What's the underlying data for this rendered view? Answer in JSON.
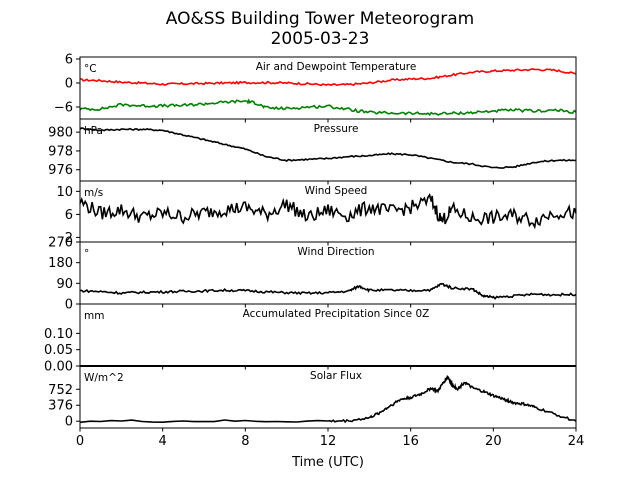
{
  "figure": {
    "title_line1": "AO&SS Building Tower Meteorogram",
    "title_line2": "2005-03-23",
    "xlabel": "Time (UTC)",
    "xticks": [
      0,
      4,
      8,
      12,
      16,
      20,
      24
    ],
    "xlim": [
      0,
      24
    ]
  },
  "chart_data": [
    {
      "type": "line",
      "title": "Air and Dewpoint Temperature",
      "unit": "°C",
      "ylim": [
        -9,
        6.5
      ],
      "yticks": [
        6,
        0,
        -6
      ],
      "ytick_labels": [
        "6",
        "0",
        "−6"
      ],
      "series": [
        {
          "color": "#ff0000",
          "x": [
            0,
            1,
            2,
            3,
            4,
            5,
            6,
            7,
            8,
            9,
            10,
            11,
            12,
            13,
            14,
            15,
            16,
            17,
            18,
            19,
            20,
            21,
            22,
            23,
            24
          ],
          "y": [
            0.8,
            0.6,
            0.2,
            0,
            -0.3,
            -0.2,
            -0.1,
            0,
            0.1,
            0.1,
            0,
            -0.2,
            -0.5,
            -0.4,
            0,
            0.7,
            1,
            1.2,
            2,
            2.7,
            3,
            3.2,
            3.4,
            3.2,
            2.3
          ]
        },
        {
          "color": "#008000",
          "x": [
            0,
            1,
            2,
            3,
            4,
            5,
            6,
            7,
            8,
            8.5,
            9,
            10,
            11,
            12,
            13,
            14,
            15,
            16,
            17,
            18,
            19,
            20,
            21,
            22,
            23,
            24
          ],
          "y": [
            -6.5,
            -6.5,
            -5.4,
            -5.7,
            -5.7,
            -5.6,
            -5.2,
            -4.8,
            -4.5,
            -5,
            -6.2,
            -6.4,
            -6,
            -5.8,
            -6.6,
            -7.4,
            -7.5,
            -7.6,
            -7.7,
            -7.6,
            -7.4,
            -7,
            -6.8,
            -7,
            -6.8,
            -7.3
          ]
        }
      ]
    },
    {
      "type": "line",
      "title": "Pressure",
      "unit": "hPa",
      "ylim": [
        974.8,
        981.4
      ],
      "yticks": [
        980,
        978,
        976
      ],
      "ytick_labels": [
        "980",
        "978",
        "976"
      ],
      "series": [
        {
          "color": "#000000",
          "x": [
            0,
            1,
            2,
            3,
            4,
            5,
            6,
            7,
            8,
            9,
            10,
            11,
            12,
            13,
            14,
            15,
            16,
            17,
            18,
            19,
            20,
            21,
            22,
            23,
            24
          ],
          "y": [
            980.4,
            980.2,
            980.3,
            980.3,
            980.2,
            979.7,
            979.2,
            978.7,
            978.2,
            977.4,
            977,
            977.1,
            977.2,
            977.4,
            977.5,
            977.7,
            977.6,
            977.2,
            976.8,
            976.6,
            976.2,
            976.3,
            976.8,
            977,
            977
          ]
        }
      ]
    },
    {
      "type": "line",
      "title": "Wind Speed",
      "unit": "m/s",
      "ylim": [
        1.2,
        11.8
      ],
      "yticks": [
        10,
        6,
        2
      ],
      "ytick_labels": [
        "10",
        "6",
        "2"
      ],
      "series": [
        {
          "color": "#000000",
          "x": [
            0,
            1,
            2,
            3,
            4,
            5,
            6,
            7,
            8,
            9,
            10,
            11,
            12,
            13,
            14,
            15,
            16,
            17,
            17.5,
            18,
            19,
            20,
            21,
            22,
            23,
            24
          ],
          "y": [
            8.2,
            6.2,
            6.8,
            5.5,
            6.2,
            5.6,
            6.3,
            6.9,
            7.2,
            6,
            7.8,
            5.4,
            6.7,
            5.8,
            7.3,
            6.5,
            7.2,
            8.5,
            4.8,
            6.8,
            5.3,
            5.4,
            5.8,
            4.9,
            6.4,
            6.2
          ]
        }
      ]
    },
    {
      "type": "line",
      "title": "Wind Direction",
      "unit": "°",
      "ylim": [
        0,
        270
      ],
      "yticks": [
        270,
        180,
        90,
        0
      ],
      "ytick_labels": [
        "270",
        "180",
        "90",
        "0"
      ],
      "series": [
        {
          "color": "#000000",
          "x": [
            0,
            1,
            2,
            3,
            4,
            5,
            6,
            7,
            8,
            9,
            10,
            11,
            12,
            13,
            13.5,
            14,
            15,
            16,
            17,
            17.5,
            18,
            19,
            19.5,
            20,
            21,
            22,
            23,
            24
          ],
          "y": [
            58,
            54,
            48,
            51,
            53,
            55,
            57,
            60,
            58,
            53,
            49,
            47,
            49,
            56,
            78,
            60,
            60,
            58,
            62,
            88,
            70,
            65,
            35,
            28,
            35,
            43,
            40,
            42
          ]
        }
      ]
    },
    {
      "type": "line",
      "title": "Accumulated Precipitation Since 0Z",
      "unit": "mm",
      "ylim": [
        0,
        0.19
      ],
      "yticks": [
        0.1,
        0.05,
        0
      ],
      "ytick_labels": [
        "0.10",
        "0.05",
        "0.00"
      ],
      "series": [
        {
          "color": "#000000",
          "x": [
            0,
            24
          ],
          "y": [
            0,
            0
          ]
        }
      ]
    },
    {
      "type": "line",
      "title": "Solar Flux",
      "unit": "W/m^2",
      "ylim": [
        -160,
        1300
      ],
      "yticks": [
        752,
        376,
        0
      ],
      "ytick_labels": [
        "752",
        "376",
        "0"
      ],
      "series": [
        {
          "color": "#000000",
          "x": [
            0,
            6,
            12,
            13,
            14,
            14.5,
            15,
            15.5,
            16,
            16.5,
            17,
            17.3,
            17.6,
            17.8,
            18,
            18.3,
            18.6,
            19,
            19.5,
            20,
            20.5,
            21,
            21.5,
            22,
            23,
            24
          ],
          "y": [
            0,
            0,
            0,
            10,
            80,
            200,
            360,
            510,
            560,
            640,
            780,
            700,
            920,
            1050,
            850,
            760,
            920,
            780,
            700,
            600,
            520,
            430,
            400,
            330,
            160,
            0
          ]
        }
      ]
    }
  ]
}
